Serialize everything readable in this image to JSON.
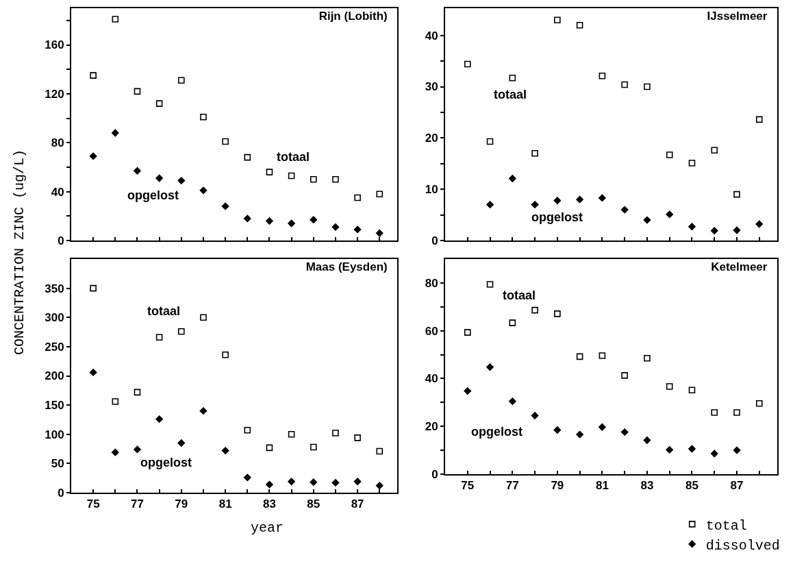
{
  "chart_data": [
    {
      "type": "scatter",
      "title": "Rijn (Lobith)",
      "ylabel": "CONCENTRATION ZINC (ug/L)",
      "x": [
        75,
        76,
        77,
        78,
        79,
        80,
        81,
        82,
        83,
        84,
        85,
        86,
        87,
        88
      ],
      "xlim": [
        74,
        88.8
      ],
      "xticks": [
        {
          "value": 75,
          "label": null
        },
        {
          "value": 76,
          "label": null
        },
        {
          "value": 77,
          "label": null
        },
        {
          "value": 78,
          "label": null
        },
        {
          "value": 79,
          "label": null
        },
        {
          "value": 80,
          "label": null
        },
        {
          "value": 81,
          "label": null
        },
        {
          "value": 82,
          "label": null
        },
        {
          "value": 83,
          "label": null
        },
        {
          "value": 84,
          "label": null
        },
        {
          "value": 85,
          "label": null
        },
        {
          "value": 86,
          "label": null
        },
        {
          "value": 87,
          "label": null
        },
        {
          "value": 88,
          "label": null
        }
      ],
      "ylim": [
        0,
        190
      ],
      "yticks": [
        0,
        {
          "value": 20,
          "label": null
        },
        40,
        {
          "value": 60,
          "label": null
        },
        80,
        {
          "value": 100,
          "label": null
        },
        120,
        {
          "value": 140,
          "label": null
        },
        160,
        {
          "value": 180,
          "label": null
        }
      ],
      "tick_labels": "y",
      "series": [
        {
          "color": "#000000",
          "marker": "square",
          "values": [
            135,
            181,
            122,
            112,
            131,
            101,
            81,
            68,
            56,
            53,
            50,
            50,
            35,
            38
          ]
        },
        {
          "color": "#000000",
          "marker": "diamond",
          "values": [
            69,
            88,
            57,
            51,
            49,
            41,
            28,
            18,
            16,
            14,
            17,
            11,
            9,
            6
          ]
        }
      ],
      "annotations": [
        "totaal",
        "opgelost"
      ]
    },
    {
      "type": "scatter",
      "title": "IJsselmeer",
      "x": [
        75,
        76,
        77,
        78,
        79,
        80,
        81,
        82,
        83,
        84,
        85,
        86,
        87,
        88
      ],
      "xlim": [
        74,
        88.8
      ],
      "xticks": [
        {
          "value": 75,
          "label": null
        },
        {
          "value": 76,
          "label": null
        },
        {
          "value": 77,
          "label": null
        },
        {
          "value": 78,
          "label": null
        },
        {
          "value": 79,
          "label": null
        },
        {
          "value": 80,
          "label": null
        },
        {
          "value": 81,
          "label": null
        },
        {
          "value": 82,
          "label": null
        },
        {
          "value": 83,
          "label": null
        },
        {
          "value": 84,
          "label": null
        },
        {
          "value": 85,
          "label": null
        },
        {
          "value": 86,
          "label": null
        },
        {
          "value": 87,
          "label": null
        },
        {
          "value": 88,
          "label": null
        }
      ],
      "ylim": [
        0,
        45.3
      ],
      "yticks": [
        0,
        {
          "value": 5,
          "label": null
        },
        10,
        {
          "value": 15,
          "label": null
        },
        20,
        {
          "value": 25,
          "label": null
        },
        30,
        {
          "value": 35,
          "label": null
        },
        40
      ],
      "tick_labels": "y",
      "series": [
        {
          "color": "#000000",
          "marker": "square",
          "values": [
            34.4,
            19.3,
            31.7,
            17,
            43,
            42,
            32.1,
            30.4,
            30,
            16.7,
            15.1,
            17.6,
            9,
            23.6
          ]
        },
        {
          "color": "#000000",
          "marker": "diamond",
          "values": [
            null,
            7,
            12.1,
            7,
            7.8,
            8,
            8.3,
            6,
            4,
            5.1,
            2.7,
            1.9,
            2,
            3.2
          ]
        }
      ],
      "annotations": [
        "totaal",
        "opgelost"
      ]
    },
    {
      "type": "scatter",
      "title": "Maas (Eysden)",
      "xlabel": "year",
      "x": [
        75,
        76,
        77,
        78,
        79,
        80,
        81,
        82,
        83,
        84,
        85,
        86,
        87,
        88
      ],
      "xlim": [
        74,
        88.8
      ],
      "xticks": [
        75,
        {
          "value": 76,
          "label": null
        },
        77,
        {
          "value": 78,
          "label": null
        },
        79,
        {
          "value": 80,
          "label": null
        },
        81,
        {
          "value": 82,
          "label": null
        },
        83,
        {
          "value": 84,
          "label": null
        },
        85,
        {
          "value": 86,
          "label": null
        },
        87,
        {
          "value": 88,
          "label": null
        }
      ],
      "ylim": [
        0,
        400
      ],
      "yticks": [
        0,
        50,
        100,
        150,
        200,
        250,
        300,
        350
      ],
      "series": [
        {
          "color": "#000000",
          "marker": "square",
          "values": [
            350,
            156,
            172,
            266,
            276,
            300,
            236,
            107,
            77,
            100,
            78,
            102,
            94,
            71
          ]
        },
        {
          "color": "#000000",
          "marker": "diamond",
          "values": [
            206,
            69,
            74,
            126,
            85,
            140,
            72,
            26,
            14,
            19,
            18,
            17,
            19,
            12
          ]
        }
      ],
      "annotations": [
        "totaal",
        "opgelost"
      ]
    },
    {
      "type": "scatter",
      "title": "Ketelmeer",
      "x": [
        75,
        76,
        77,
        78,
        79,
        80,
        81,
        82,
        83,
        84,
        85,
        86,
        87,
        88
      ],
      "xlim": [
        74,
        88.8
      ],
      "xticks": [
        75,
        {
          "value": 76,
          "label": null
        },
        77,
        {
          "value": 78,
          "label": null
        },
        79,
        {
          "value": 80,
          "label": null
        },
        81,
        {
          "value": 82,
          "label": null
        },
        83,
        {
          "value": 84,
          "label": null
        },
        85,
        {
          "value": 86,
          "label": null
        },
        87,
        {
          "value": 88,
          "label": null
        }
      ],
      "ylim": [
        0,
        90
      ],
      "yticks": [
        0,
        {
          "value": 10,
          "label": null
        },
        20,
        {
          "value": 30,
          "label": null
        },
        40,
        {
          "value": 50,
          "label": null
        },
        60,
        {
          "value": 70,
          "label": null
        },
        80
      ],
      "legend": "bottom right",
      "series": [
        {
          "name": "total",
          "color": "#000000",
          "marker": "square",
          "values": [
            59.3,
            79.4,
            63.3,
            68.6,
            67.1,
            49.2,
            49.6,
            41.3,
            48.5,
            36.7,
            35.2,
            25.8,
            25.8,
            29.6
          ]
        },
        {
          "name": "dissolved",
          "color": "#000000",
          "marker": "diamond",
          "values": [
            34.8,
            44.8,
            30.5,
            24.5,
            18.5,
            16.6,
            19.7,
            17.6,
            14.2,
            10.2,
            10.6,
            8.6,
            10,
            null
          ]
        }
      ],
      "annotations": [
        "totaal",
        "opgelost"
      ]
    }
  ]
}
